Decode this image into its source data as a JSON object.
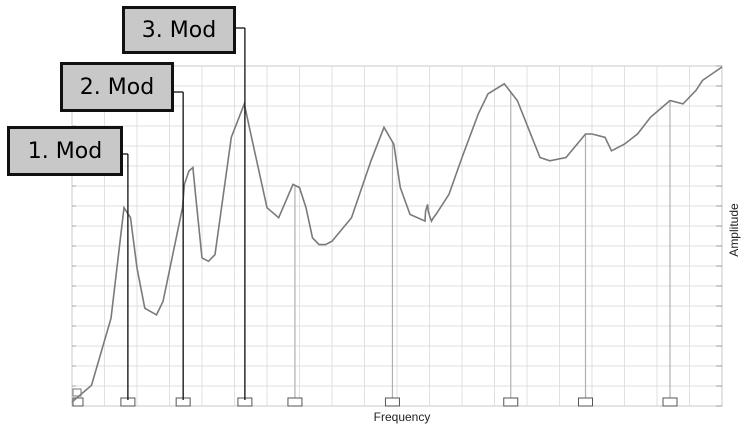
{
  "chart_data": {
    "type": "line",
    "title": "",
    "xlabel": "Frequency",
    "ylabel": "Amplitude",
    "grid": true,
    "x_range": [
      0,
      1
    ],
    "y_range": [
      0,
      1
    ],
    "series": [
      {
        "values_x": [
          0.0,
          0.03,
          0.06,
          0.08,
          0.09,
          0.1,
          0.112,
          0.13,
          0.14,
          0.17,
          0.173,
          0.18,
          0.186,
          0.19,
          0.2,
          0.21,
          0.22,
          0.245,
          0.265,
          0.275,
          0.3,
          0.318,
          0.34,
          0.35,
          0.36,
          0.37,
          0.38,
          0.39,
          0.4,
          0.43,
          0.46,
          0.48,
          0.495,
          0.505,
          0.52,
          0.543,
          0.544,
          0.547,
          0.548,
          0.551,
          0.553,
          0.556,
          0.56,
          0.58,
          0.6,
          0.625,
          0.64,
          0.665,
          0.685,
          0.72,
          0.735,
          0.76,
          0.79,
          0.8,
          0.82,
          0.83,
          0.85,
          0.87,
          0.89,
          0.92,
          0.94,
          0.96,
          0.97,
          1.0
        ],
        "values_y": [
          0.0,
          0.05,
          0.25,
          0.58,
          0.55,
          0.4,
          0.28,
          0.26,
          0.3,
          0.58,
          0.65,
          0.69,
          0.7,
          0.62,
          0.43,
          0.42,
          0.44,
          0.79,
          0.89,
          0.8,
          0.58,
          0.55,
          0.65,
          0.64,
          0.58,
          0.49,
          0.47,
          0.47,
          0.48,
          0.55,
          0.72,
          0.82,
          0.77,
          0.64,
          0.56,
          0.54,
          0.57,
          0.59,
          0.57,
          0.55,
          0.54,
          0.55,
          0.56,
          0.62,
          0.73,
          0.86,
          0.92,
          0.95,
          0.9,
          0.73,
          0.72,
          0.73,
          0.8,
          0.8,
          0.79,
          0.75,
          0.77,
          0.8,
          0.85,
          0.9,
          0.89,
          0.93,
          0.96,
          1.0
        ]
      }
    ],
    "peak_markers_x": [
      0.086,
      0.171,
      0.266,
      0.343,
      0.493,
      0.675,
      0.79,
      0.92
    ],
    "callouts": [
      {
        "label": "1. Mod",
        "marker_index": 0
      },
      {
        "label": "2. Mod",
        "marker_index": 1
      },
      {
        "label": "3. Mod",
        "marker_index": 2
      }
    ]
  },
  "style": {
    "line_color": "#7a7a7a",
    "grid_color": "#d4d4d4",
    "major_line_color": "#b0b0b0",
    "callout_fill": "#c8c8c8",
    "callout_border": "#111111"
  }
}
